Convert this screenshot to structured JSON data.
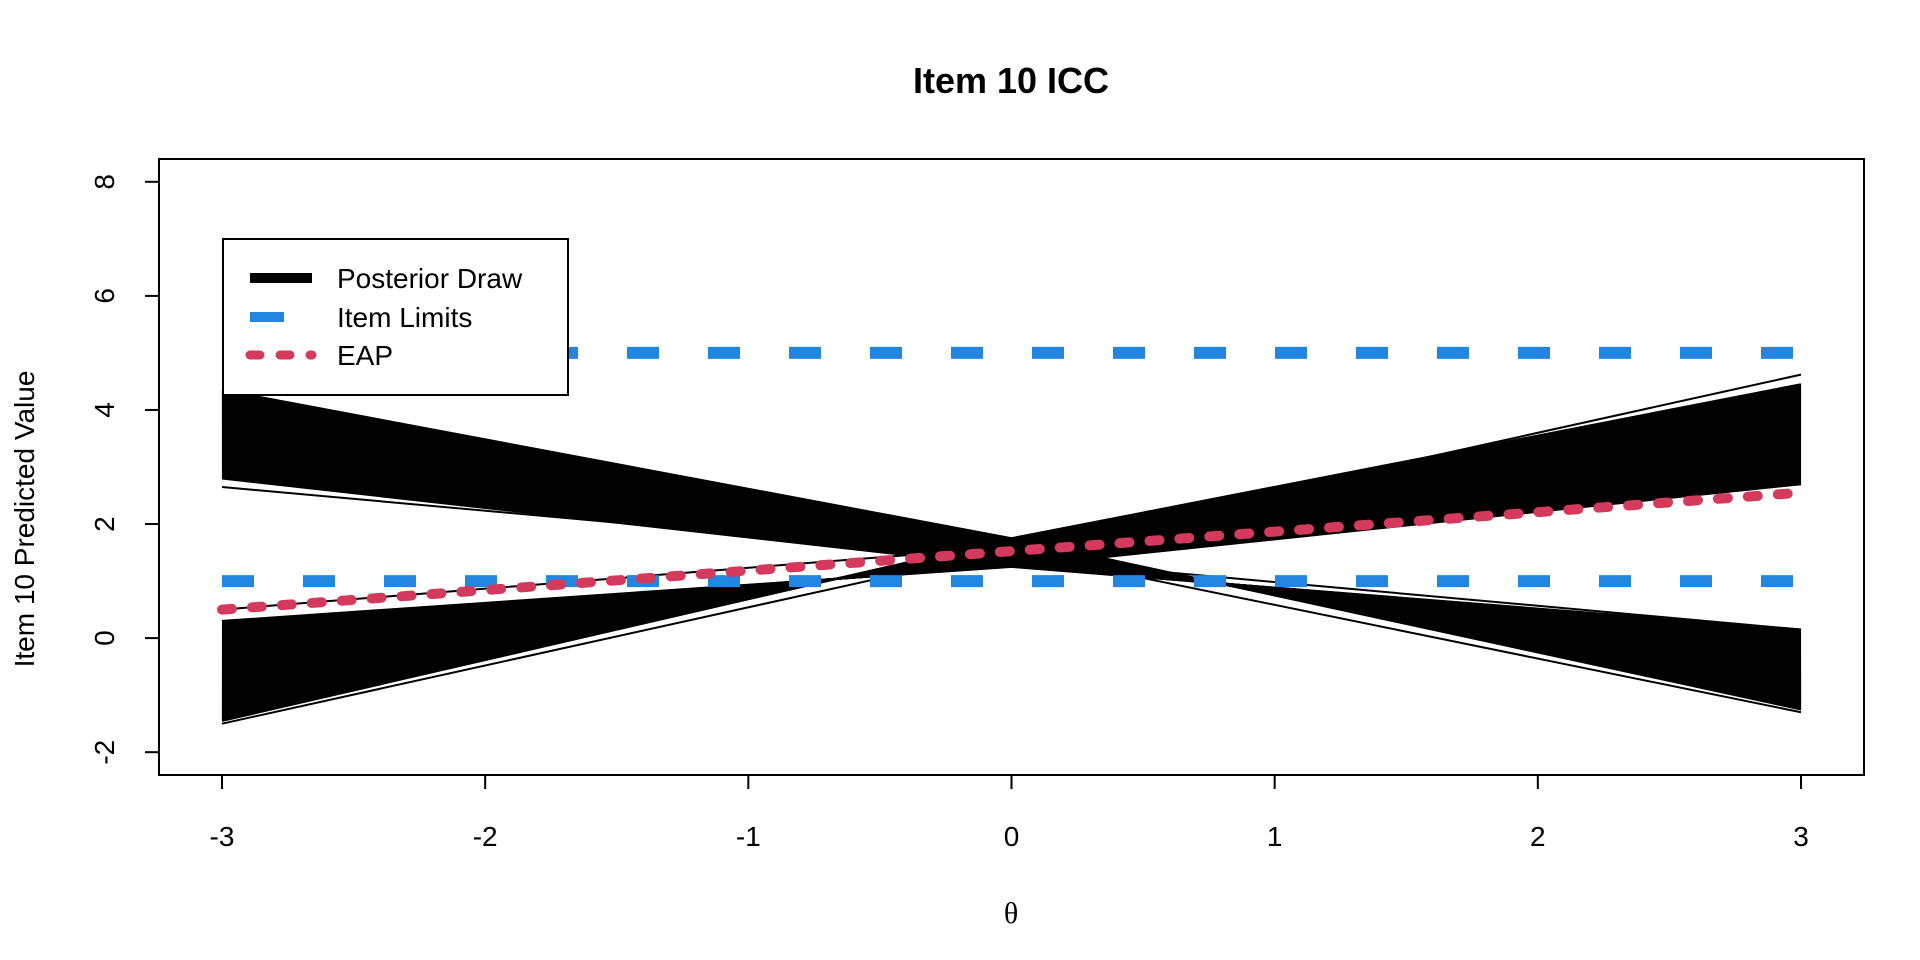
{
  "chart_data": {
    "type": "line",
    "title": "Item 10 ICC",
    "xlabel": "θ",
    "ylabel": "Item 10 Predicted Value",
    "xlim": [
      -3,
      3
    ],
    "ylim": [
      -2.4,
      8.4
    ],
    "x_ticks": [
      "-3",
      "-2",
      "-1",
      "0",
      "1",
      "2",
      "3"
    ],
    "y_ticks": [
      "-2",
      "0",
      "2",
      "4",
      "6",
      "8"
    ],
    "grid": false,
    "legend_position": "top-left",
    "legend": [
      {
        "label": "Posterior Draw",
        "color": "#000000",
        "style": "solid"
      },
      {
        "label": "Item Limits",
        "color": "#2286E0",
        "style": "dashed"
      },
      {
        "label": "EAP",
        "color": "#D43A5B",
        "style": "dotted"
      }
    ],
    "series": [
      {
        "name": "Item Limits",
        "color": "#2286E0",
        "x": [
          -3,
          3
        ],
        "y": [
          5,
          5
        ]
      },
      {
        "name": "Item Limits",
        "color": "#2286E0",
        "x": [
          -3,
          3
        ],
        "y": [
          1,
          1
        ]
      },
      {
        "name": "EAP",
        "color": "#D43A5B",
        "x": [
          -3,
          3
        ],
        "y": [
          0.5,
          2.55
        ]
      }
    ],
    "posterior_draws": {
      "name": "Posterior Draw",
      "color": "#000000",
      "negative_slope": {
        "at_x0": [
          1.25,
          1.75
        ],
        "at_xmin": [
          2.8,
          4.35
        ],
        "at_xmax": [
          0.15,
          -1.25
        ]
      },
      "positive_slope": {
        "at_x0": [
          1.25,
          1.75
        ],
        "at_xmin": [
          0.3,
          -1.45
        ],
        "at_xmax": [
          2.7,
          4.45
        ]
      },
      "outliers": [
        {
          "x": [
            -3,
            3
          ],
          "y": [
            2.65,
            0.15
          ]
        },
        {
          "x": [
            -3,
            3
          ],
          "y": [
            4.35,
            -1.3
          ]
        },
        {
          "x": [
            -3,
            3
          ],
          "y": [
            -1.5,
            4.62
          ]
        },
        {
          "x": [
            -3,
            3
          ],
          "y": [
            0.5,
            2.7
          ]
        }
      ]
    }
  }
}
